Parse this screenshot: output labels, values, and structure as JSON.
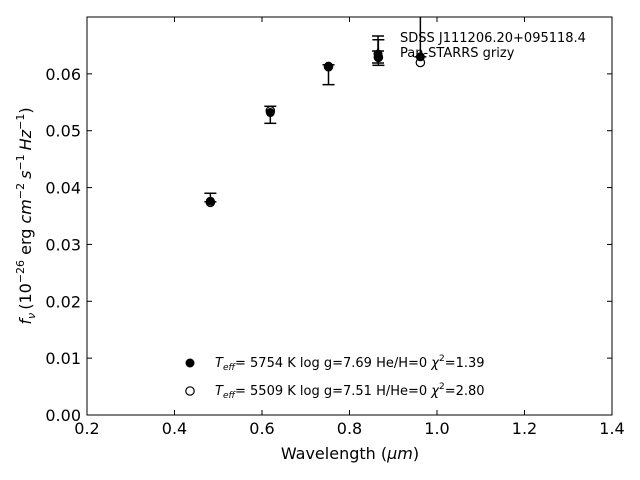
{
  "chart_data": {
    "type": "scatter",
    "title": "",
    "xlabel_main": "Wavelength (",
    "xlabel_unit": "μm",
    "xlabel_close": ")",
    "ylabel_f": "f",
    "ylabel_nu": "ν",
    "ylabel_pre": "(10",
    "ylabel_exp1": "−26",
    "ylabel_erg": " erg ",
    "ylabel_cm": "cm",
    "ylabel_exp2": "−2",
    "ylabel_s": "s",
    "ylabel_exp3": "−1",
    "ylabel_hz": "Hz",
    "ylabel_exp4": "−1",
    "ylabel_close": ")",
    "xlim": [
      0.2,
      1.4
    ],
    "ylim": [
      0.0,
      0.07
    ],
    "xticks": [
      0.2,
      0.4,
      0.6,
      0.8,
      1.0,
      1.2,
      1.4
    ],
    "xtick_labels": [
      "0.2",
      "0.4",
      "0.6",
      "0.8",
      "1.0",
      "1.2",
      "1.4"
    ],
    "yticks": [
      0.0,
      0.01,
      0.02,
      0.03,
      0.04,
      0.05,
      0.06
    ],
    "ytick_labels": [
      "0.00",
      "0.01",
      "0.02",
      "0.03",
      "0.04",
      "0.05",
      "0.06"
    ],
    "grid": false,
    "legend_position": "top-right",
    "series": [
      {
        "name": "SDSS J111206.20+095118.4",
        "marker": "errorbar",
        "x": [
          0.482,
          0.619,
          0.752,
          0.866,
          0.962
        ],
        "y": [
          0.038,
          0.0533,
          0.0611,
          0.063,
          0.07
        ],
        "yerr_low": [
          0.0005,
          0.002,
          0.003,
          0.0015,
          0.007
        ],
        "yerr_high": [
          0.001,
          0.001,
          0.0005,
          0.003,
          0.009
        ]
      },
      {
        "name": "Pan-STARRS grizy",
        "marker": "filled-circle",
        "x": [
          0.482,
          0.619,
          0.752,
          0.866,
          0.962
        ],
        "y": [
          0.0376,
          0.0532,
          0.0612,
          0.063,
          0.063
        ]
      },
      {
        "name": "",
        "marker": "open-circle",
        "x": [
          0.482,
          0.619,
          0.752,
          0.866,
          0.962
        ],
        "y": [
          0.0374,
          0.0535,
          0.0613,
          0.0629,
          0.062
        ]
      }
    ],
    "model_legend": [
      {
        "marker": "filled-circle",
        "teff_T": "T",
        "teff_sub": "eff",
        "text": "=  5754 K  log g=7.69  He/H=0  ",
        "chi": "χ",
        "chi_exp": "2",
        "chi_val": "=1.39"
      },
      {
        "marker": "open-circle",
        "teff_T": "T",
        "teff_sub": "eff",
        "text": "=  5509 K  log g=7.51  H/He=0  ",
        "chi": "χ",
        "chi_exp": "2",
        "chi_val": "=2.80"
      }
    ]
  }
}
